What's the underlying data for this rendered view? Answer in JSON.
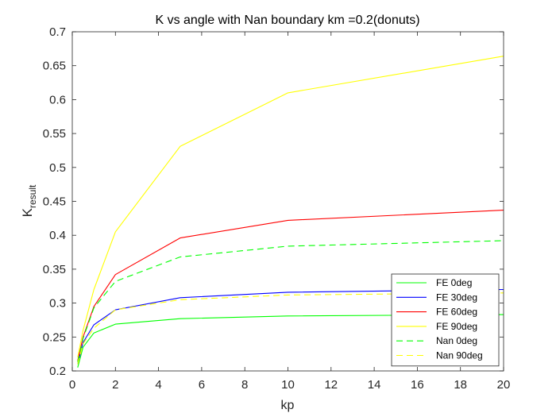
{
  "chart_data": {
    "type": "line",
    "title": "K vs angle with Nan boundary km =0.2(donuts)",
    "xlabel": "kp",
    "ylabel_main": "K",
    "ylabel_sub": "result",
    "xlim": [
      0,
      20
    ],
    "ylim": [
      0.2,
      0.7
    ],
    "xticks": [
      "0",
      "2",
      "4",
      "6",
      "8",
      "10",
      "12",
      "14",
      "16",
      "18",
      "20"
    ],
    "yticks": [
      "0.2",
      "0.25",
      "0.3",
      "0.35",
      "0.4",
      "0.45",
      "0.5",
      "0.55",
      "0.6",
      "0.65",
      "0.7"
    ],
    "grid": false,
    "legend_position": "bottom-right",
    "series": [
      {
        "name": "FE 0deg",
        "color": "#00ff00",
        "dash": "solid",
        "x": [
          0.25,
          0.5,
          1,
          2,
          5,
          10,
          20
        ],
        "y": [
          0.205,
          0.235,
          0.256,
          0.269,
          0.277,
          0.281,
          0.283
        ]
      },
      {
        "name": "FE 30deg",
        "color": "#0000ff",
        "dash": "solid",
        "x": [
          0.25,
          0.5,
          1,
          2,
          5,
          10,
          20
        ],
        "y": [
          0.21,
          0.242,
          0.268,
          0.29,
          0.308,
          0.316,
          0.32
        ]
      },
      {
        "name": "FE 60deg",
        "color": "#ff0000",
        "dash": "solid",
        "x": [
          0.25,
          0.5,
          1,
          2,
          5,
          10,
          20
        ],
        "y": [
          0.215,
          0.25,
          0.295,
          0.342,
          0.396,
          0.422,
          0.437
        ]
      },
      {
        "name": "FE 90deg",
        "color": "#ffff00",
        "dash": "solid",
        "x": [
          0.25,
          0.5,
          1,
          2,
          5,
          10,
          20
        ],
        "y": [
          0.22,
          0.26,
          0.32,
          0.405,
          0.531,
          0.61,
          0.664
        ]
      },
      {
        "name": "Nan 0deg",
        "color": "#00ff00",
        "dash": "dashed",
        "x": [
          0.25,
          0.5,
          1,
          2,
          5,
          10,
          20
        ],
        "y": [
          0.213,
          0.248,
          0.293,
          0.332,
          0.368,
          0.384,
          0.392
        ]
      },
      {
        "name": "Nan 90deg",
        "color": "#ffff00",
        "dash": "dashed",
        "x": [
          0.25,
          0.5,
          1,
          2,
          5,
          10,
          20
        ],
        "y": [
          0.21,
          0.24,
          0.263,
          0.29,
          0.305,
          0.312,
          0.315
        ]
      }
    ]
  }
}
